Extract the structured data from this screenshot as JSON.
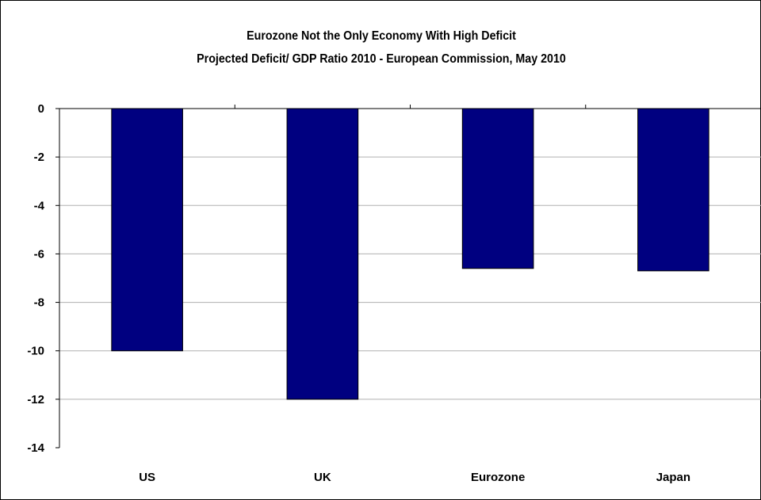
{
  "chart_data": {
    "type": "bar",
    "title": "Eurozone Not the Only Economy With High Deficit",
    "subtitle": "Projected Deficit/ GDP Ratio 2010 - European Commission, May 2010",
    "categories": [
      "US",
      "UK",
      "Eurozone",
      "Japan"
    ],
    "values": [
      -10.0,
      -12.0,
      -6.6,
      -6.7
    ],
    "ylim": [
      -14,
      0
    ],
    "yticks": [
      0,
      -2,
      -4,
      -6,
      -8,
      -10,
      -12,
      -14
    ],
    "xlabel": "",
    "ylabel": "",
    "grid": true,
    "bar_color": "#000080",
    "category_axis_position": "bottom"
  }
}
